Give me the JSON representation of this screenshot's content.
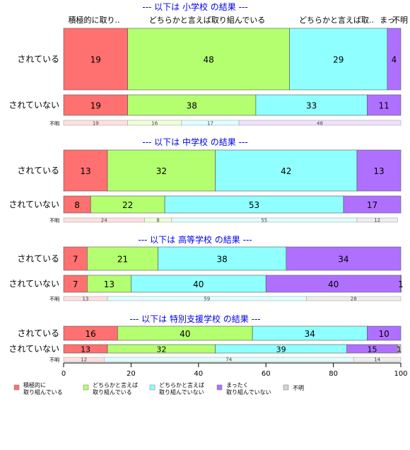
{
  "chart_data": {
    "type": "bar",
    "orientation": "horizontal",
    "stacked": true,
    "xlim": [
      0,
      100
    ],
    "x_ticks": [
      0,
      20,
      40,
      60,
      80,
      100
    ],
    "grid": false,
    "legend_placement": "bottom",
    "top_labels": [
      "積極的に取り..",
      "どちらかと言えば取り組んでいる",
      "どちらかと言えば取..",
      "まっ",
      "不明"
    ],
    "legend": [
      {
        "label": "積極的に\n取り組んでいる",
        "color": "#ff7070"
      },
      {
        "label": "どちらかと言えば\n取り組んでいる",
        "color": "#b3ff70"
      },
      {
        "label": "どちらかと言えば\n取り組んでいない",
        "color": "#8fffff"
      },
      {
        "label": "まったく\n取り組んでいない",
        "color": "#b070ff"
      },
      {
        "label": "不明",
        "color": "#d3d3d3"
      }
    ],
    "panels": [
      {
        "title": "--- 以下は 小学校 の結果 ---",
        "bars": [
          {
            "category": "されている",
            "values": [
              19,
              48,
              29,
              4,
              0
            ]
          },
          {
            "category": "されていない",
            "values": [
              19,
              38,
              33,
              11,
              0
            ]
          }
        ],
        "unknown_label": "不明",
        "unknown_values": [
          19,
          16,
          17,
          48,
          0
        ]
      },
      {
        "title": "--- 以下は 中学校 の結果 ---",
        "bars": [
          {
            "category": "されている",
            "values": [
              13,
              32,
              42,
              13,
              0
            ]
          },
          {
            "category": "されていない",
            "values": [
              8,
              22,
              53,
              17,
              0
            ]
          }
        ],
        "unknown_label": "不明",
        "unknown_values": [
          24,
          8,
          55,
          0,
          12
        ]
      },
      {
        "title": "--- 以下は 高等学校 の結果 ---",
        "bars": [
          {
            "category": "されている",
            "values": [
              7,
              21,
              38,
              34,
              0
            ]
          },
          {
            "category": "されていない",
            "values": [
              7,
              13,
              40,
              40,
              1
            ]
          }
        ],
        "unknown_label": "不明",
        "unknown_values": [
          13,
          0,
          59,
          0,
          28
        ]
      },
      {
        "title": "--- 以下は 特別支援学校 の結果 ---",
        "bars": [
          {
            "category": "されている",
            "values": [
              16,
              40,
              34,
              10,
              0
            ]
          },
          {
            "category": "されていない",
            "values": [
              13,
              32,
              39,
              15,
              1
            ]
          }
        ],
        "unknown_label": "不明",
        "unknown_values": [
          12,
          0,
          74,
          0,
          14
        ]
      }
    ]
  }
}
